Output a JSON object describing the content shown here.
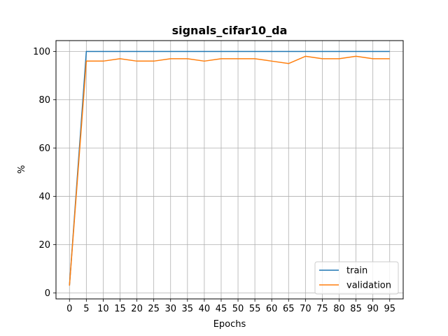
{
  "chart_data": {
    "type": "line",
    "title": "signals_cifar10_da",
    "xlabel": "Epochs",
    "ylabel": "%",
    "xlim": [
      -4,
      99
    ],
    "ylim": [
      -2.5,
      104.5
    ],
    "xticks": [
      0,
      5,
      10,
      15,
      20,
      25,
      30,
      35,
      40,
      45,
      50,
      55,
      60,
      65,
      70,
      75,
      80,
      85,
      90,
      95
    ],
    "yticks": [
      0,
      20,
      40,
      60,
      80,
      100
    ],
    "grid": true,
    "legend_position": "lower-right",
    "x": [
      0,
      5,
      10,
      15,
      20,
      25,
      30,
      35,
      40,
      45,
      50,
      55,
      60,
      65,
      70,
      75,
      80,
      85,
      90,
      95
    ],
    "series": [
      {
        "name": "train",
        "color": "#1f77b4",
        "values": [
          3,
          100,
          100,
          100,
          100,
          100,
          100,
          100,
          100,
          100,
          100,
          100,
          100,
          100,
          100,
          100,
          100,
          100,
          100,
          100
        ]
      },
      {
        "name": "validation",
        "color": "#ff7f0e",
        "values": [
          3,
          96,
          96,
          97,
          96,
          96,
          97,
          97,
          96,
          97,
          97,
          97,
          96,
          95,
          98,
          97,
          97,
          98,
          97,
          97
        ]
      }
    ]
  }
}
